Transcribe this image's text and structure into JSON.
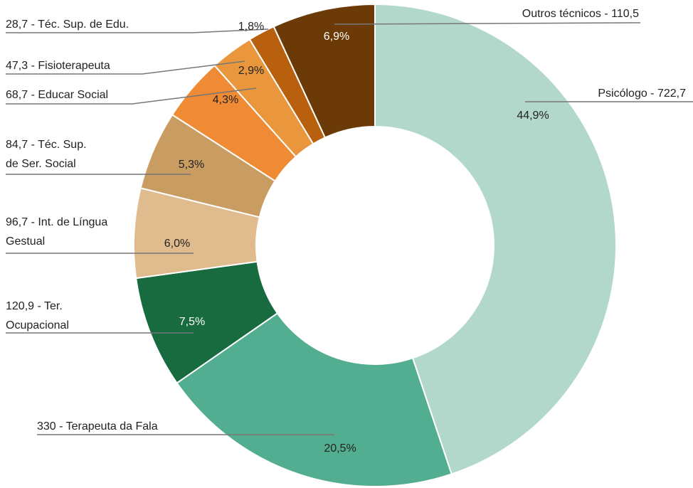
{
  "chart_data": {
    "type": "donut",
    "categories": [
      "Psicólogo - 722,7",
      "330 - Terapeuta da Fala",
      "120,9 - Ter. Ocupacional",
      "96,7 - Int. de Língua Gestual",
      "84,7 - Téc. Sup. de Ser. Social",
      "68,7 - Educar Social",
      "47,3 - Fisioterapeuta",
      "28,7 - Téc. Sup. de Edu.",
      "Outros técnicos - 110,5"
    ],
    "values": [
      44.9,
      20.5,
      7.5,
      6.0,
      5.3,
      4.3,
      2.9,
      1.8,
      6.9
    ],
    "value_labels": [
      "44,9%",
      "20,5%",
      "7,5%",
      "6,0%",
      "5,3%",
      "4,3%",
      "2,9%",
      "1,8%",
      "6,9%"
    ],
    "colors": [
      "#b2d8cc",
      "#52ad91",
      "#176b3e",
      "#dfbb8d",
      "#c99c62",
      "#ef8a35",
      "#e9963d",
      "#b8600e",
      "#6b3a06"
    ]
  }
}
